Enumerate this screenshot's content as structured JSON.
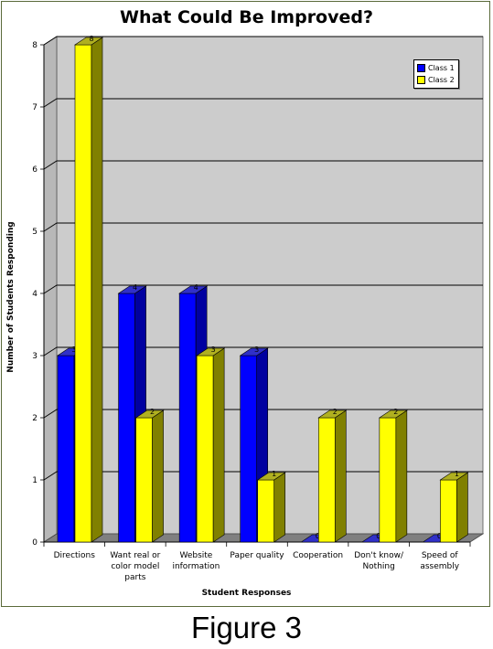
{
  "chart_data": {
    "type": "bar",
    "title": "What Could Be Improved?",
    "xlabel": "Student Responses",
    "ylabel": "Number of Students Responding",
    "ylim": [
      0,
      8
    ],
    "yticks": [
      "0",
      "1",
      "2",
      "3",
      "4",
      "5",
      "6",
      "7",
      "8"
    ],
    "categories": [
      [
        "Directions"
      ],
      [
        "Want real or",
        "color model",
        "parts"
      ],
      [
        "Website",
        "information"
      ],
      [
        "Paper quality"
      ],
      [
        "Cooperation"
      ],
      [
        "Don't know/",
        "Nothing"
      ],
      [
        "Speed of",
        "assembly"
      ]
    ],
    "series": [
      {
        "name": "Class 1",
        "values": [
          3,
          4,
          4,
          3,
          0,
          0,
          0
        ],
        "color": "#0000ff",
        "side_color": "#0000a0",
        "top_color": "#3030c8"
      },
      {
        "name": "Class 2",
        "values": [
          8,
          2,
          3,
          1,
          2,
          2,
          1
        ],
        "color": "#ffff00",
        "side_color": "#808000",
        "top_color": "#b0b020"
      }
    ],
    "grid": true,
    "legend_position": "top-right",
    "plot_background": "#cccccc",
    "floor_color": "#808080"
  },
  "caption": "Figure 3"
}
